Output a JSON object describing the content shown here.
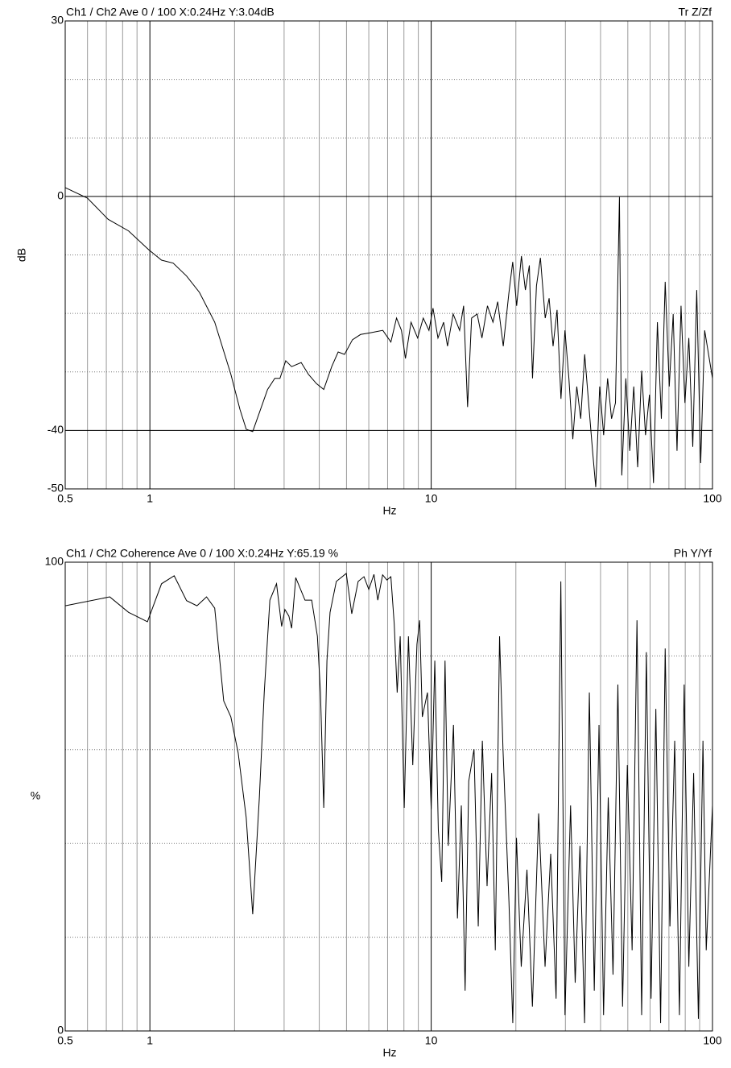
{
  "chart_data": [
    {
      "type": "line",
      "title": "Ch1 / Ch2  Ave 0 / 100  X:0.24Hz  Y:3.04dB",
      "title_right": "Tr Z/Zf",
      "xlabel": "Hz",
      "ylabel": "dB",
      "ylabel_rotated": true,
      "xscale": "log",
      "color": "#000000",
      "xlim": [
        0.5,
        100
      ],
      "xticks": [
        0.5,
        1,
        10,
        100
      ],
      "xgrid_minor": [
        0.6,
        0.7,
        0.8,
        0.9,
        2,
        3,
        4,
        5,
        6,
        7,
        8,
        9,
        20,
        30,
        40,
        50,
        60,
        70,
        80,
        90
      ],
      "ylim": [
        -50,
        30
      ],
      "yticks": [
        -50,
        -40,
        0,
        30
      ],
      "ygrid_minor": [
        -30,
        -20,
        -10,
        10,
        20
      ],
      "x": [
        0.5,
        0.6,
        0.71,
        0.84,
        0.99,
        1.1,
        1.21,
        1.35,
        1.5,
        1.7,
        1.94,
        2.09,
        2.2,
        2.32,
        2.62,
        2.78,
        2.9,
        3.04,
        3.19,
        3.45,
        3.66,
        3.91,
        4.15,
        4.43,
        4.67,
        4.92,
        5.25,
        5.61,
        6.09,
        6.73,
        7.19,
        7.53,
        7.84,
        8.1,
        8.48,
        8.95,
        9.37,
        9.82,
        10.15,
        10.57,
        11.07,
        11.43,
        11.97,
        12.62,
        13.04,
        13.47,
        13.92,
        14.57,
        15.15,
        15.85,
        16.58,
        17.24,
        18.04,
        18.87,
        19.49,
        20.13,
        20.93,
        21.62,
        22.33,
        22.92,
        23.67,
        24.45,
        25.43,
        26.26,
        27.12,
        28.02,
        28.93,
        29.89,
        30.87,
        31.88,
        32.93,
        34.01,
        35.13,
        36.28,
        37.47,
        38.46,
        39.72,
        41.03,
        42.38,
        43.77,
        45.2,
        46.69,
        47.6,
        49.2,
        50.8,
        52.5,
        54.2,
        56,
        57.8,
        59.7,
        61.7,
        63.7,
        65.8,
        67.9,
        70.2,
        72.5,
        74.8,
        77.3,
        79.8,
        82.4,
        85.1,
        87.9,
        90.8,
        93.8,
        100
      ],
      "values": [
        1.5,
        -0.3,
        -3.9,
        -5.9,
        -9.1,
        -10.9,
        -11.4,
        -13.6,
        -16.4,
        -21.5,
        -30.4,
        -36.4,
        -39.8,
        -40.2,
        -33,
        -31.1,
        -31.1,
        -28.1,
        -29.1,
        -28.4,
        -30.4,
        -32,
        -33,
        -29.1,
        -26.6,
        -27,
        -24.5,
        -23.6,
        -23.3,
        -22.9,
        -24.9,
        -20.8,
        -22.9,
        -27.7,
        -21.5,
        -24.2,
        -20.8,
        -22.9,
        -19.1,
        -24.2,
        -21.5,
        -25.6,
        -20.1,
        -22.9,
        -18.7,
        -36,
        -20.8,
        -20.1,
        -24.2,
        -18.7,
        -21.5,
        -18,
        -25.6,
        -16.7,
        -11.2,
        -18.7,
        -10.2,
        -16,
        -11.8,
        -31.1,
        -15.3,
        -10.5,
        -20.8,
        -17.4,
        -25.6,
        -19.4,
        -34.6,
        -22.9,
        -31.1,
        -41.5,
        -32.5,
        -38,
        -27,
        -35.3,
        -43.5,
        -49.7,
        -32.5,
        -40.8,
        -31.1,
        -38,
        -35.3,
        -0.1,
        -47.7,
        -31.1,
        -43.5,
        -32.5,
        -46.3,
        -29.8,
        -40.8,
        -33.9,
        -49,
        -21.5,
        -38,
        -14.6,
        -32.5,
        -20.1,
        -43.5,
        -18.7,
        -35.3,
        -24.2,
        -42.8,
        -16,
        -45.6,
        -22.9,
        -31.1
      ]
    },
    {
      "type": "line",
      "title": "Ch1 / Ch2  Coherence Ave 0 / 100  X:0.24Hz  Y:65.19 %",
      "title_right": "Ph Y/Yf",
      "xlabel": "Hz",
      "ylabel": "%",
      "ylabel_rotated": false,
      "xscale": "log",
      "color": "#000000",
      "xlim": [
        0.5,
        100
      ],
      "xticks": [
        0.5,
        1,
        10,
        100
      ],
      "xgrid_minor": [
        0.6,
        0.7,
        0.8,
        0.9,
        2,
        3,
        4,
        5,
        6,
        7,
        8,
        9,
        20,
        30,
        40,
        50,
        60,
        70,
        80,
        90
      ],
      "ylim": [
        0,
        100
      ],
      "yticks": [
        0,
        100
      ],
      "ygrid_minor": [
        20,
        40,
        60,
        80
      ],
      "x": [
        0.5,
        0.72,
        0.84,
        0.98,
        1.1,
        1.22,
        1.35,
        1.47,
        1.59,
        1.7,
        1.83,
        1.94,
        2.06,
        2.2,
        2.32,
        2.45,
        2.55,
        2.67,
        2.82,
        2.94,
        3.02,
        3.12,
        3.19,
        3.3,
        3.56,
        3.76,
        3.94,
        4.04,
        4.15,
        4.26,
        4.37,
        4.6,
        4.99,
        5.22,
        5.5,
        5.77,
        6,
        6.26,
        6.46,
        6.72,
        6.96,
        7.19,
        7.39,
        7.57,
        7.76,
        8.02,
        8.3,
        8.6,
        8.9,
        9.1,
        9.3,
        9.7,
        10,
        10.3,
        10.6,
        10.9,
        11.2,
        11.5,
        12,
        12.4,
        12.8,
        13.2,
        13.6,
        14.2,
        14.7,
        15.2,
        15.8,
        16.4,
        16.9,
        17.5,
        18,
        18.9,
        19.5,
        20.1,
        20.9,
        21.9,
        22.9,
        24.1,
        25.4,
        26.6,
        27.8,
        28.9,
        29.9,
        31.3,
        32.5,
        33.8,
        35.1,
        36.5,
        38,
        39.5,
        41,
        42.6,
        44.3,
        46.1,
        47.9,
        49.8,
        51.8,
        53.9,
        56,
        58.2,
        60.5,
        62.9,
        65.4,
        67.9,
        70.6,
        73.4,
        76.3,
        79.3,
        82.4,
        85.7,
        89.1,
        92.5,
        95,
        100
      ],
      "values": [
        90.7,
        92.6,
        89.3,
        87.3,
        95.4,
        97.1,
        91.8,
        90.7,
        92.6,
        90.2,
        70.4,
        67,
        59.3,
        45.5,
        24.9,
        49.8,
        72.2,
        91.9,
        95.4,
        86.3,
        89.9,
        88.5,
        85.9,
        96.7,
        91.9,
        91.9,
        84.2,
        72.2,
        47.6,
        79,
        89.3,
        95.9,
        97.6,
        89,
        95.9,
        96.9,
        94.2,
        97.4,
        91.9,
        97.3,
        96.2,
        96.9,
        86.8,
        72.2,
        84.2,
        47.6,
        84.2,
        56.7,
        82.5,
        87.6,
        67,
        72.2,
        47.3,
        79,
        43,
        31.8,
        79,
        39.5,
        65.3,
        24,
        48.1,
        8.6,
        53.3,
        60.1,
        22.3,
        61.9,
        30.9,
        55,
        17.2,
        84.2,
        60.1,
        27.5,
        1.7,
        41.2,
        13.7,
        34.4,
        5.2,
        46.4,
        13.7,
        37.8,
        6.9,
        95.9,
        3.4,
        48.1,
        10.3,
        39.5,
        1.7,
        72.2,
        8.6,
        65.3,
        3.4,
        49.8,
        12,
        73.9,
        5.2,
        56.7,
        17.2,
        87.6,
        3.4,
        80.8,
        6.9,
        68.7,
        1.7,
        81.6,
        22.3,
        61.9,
        3.4,
        73.9,
        13.7,
        55,
        2.6,
        61.9,
        17.2,
        48.1
      ]
    }
  ]
}
